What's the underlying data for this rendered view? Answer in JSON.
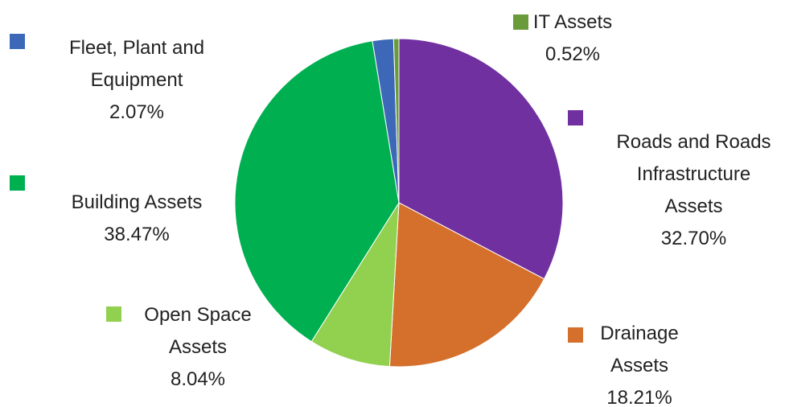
{
  "chart_data": {
    "type": "pie",
    "categories": [
      "Roads and Roads Infrastructure Assets",
      "Drainage Assets",
      "Open Space Assets",
      "Building Assets",
      "Fleet, Plant and Equipment",
      "IT Assets"
    ],
    "values": [
      32.7,
      18.21,
      8.04,
      38.47,
      2.07,
      0.52
    ],
    "value_labels": [
      "32.70%",
      "18.21%",
      "8.04%",
      "38.47%",
      "2.07%",
      "0.52%"
    ],
    "colors": [
      "#7030a0",
      "#d4702b",
      "#92d050",
      "#00b050",
      "#3d68b8",
      "#6a9b3b"
    ]
  }
}
